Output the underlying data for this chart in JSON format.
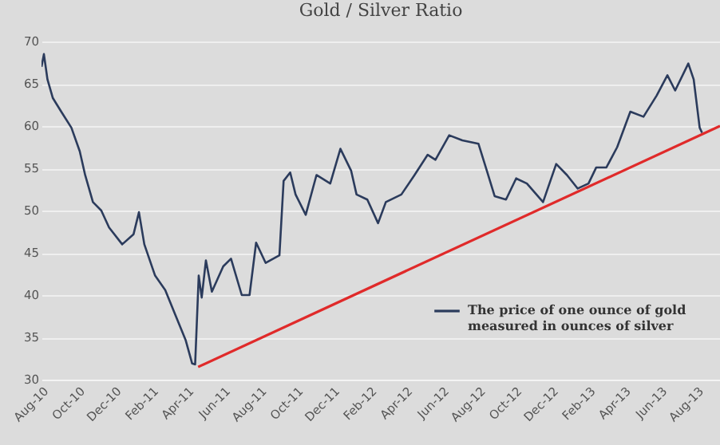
{
  "chart_data": {
    "type": "line",
    "title": "Gold / Silver Ratio",
    "xlim": [
      "2010-08-01",
      "2013-09-09"
    ],
    "xticks": [
      {
        "value": "2010-08-01",
        "label": "Aug-10"
      },
      {
        "value": "2010-10-01",
        "label": "Oct-10"
      },
      {
        "value": "2010-12-01",
        "label": "Dec-10"
      },
      {
        "value": "2011-02-01",
        "label": "Feb-11"
      },
      {
        "value": "2011-04-01",
        "label": "Apr-11"
      },
      {
        "value": "2011-06-01",
        "label": "Jun-11"
      },
      {
        "value": "2011-08-01",
        "label": "Aug-11"
      },
      {
        "value": "2011-10-01",
        "label": "Oct-11"
      },
      {
        "value": "2011-12-01",
        "label": "Dec-11"
      },
      {
        "value": "2012-02-01",
        "label": "Feb-12"
      },
      {
        "value": "2012-04-01",
        "label": "Apr-12"
      },
      {
        "value": "2012-06-01",
        "label": "Jun-12"
      },
      {
        "value": "2012-08-01",
        "label": "Aug-12"
      },
      {
        "value": "2012-10-01",
        "label": "Oct-12"
      },
      {
        "value": "2012-12-01",
        "label": "Dec-12"
      },
      {
        "value": "2013-02-01",
        "label": "Feb-13"
      },
      {
        "value": "2013-04-01",
        "label": "Apr-13"
      },
      {
        "value": "2013-06-01",
        "label": "Jun-13"
      },
      {
        "value": "2013-08-01",
        "label": "Aug-13"
      }
    ],
    "ylim": [
      30,
      70
    ],
    "yticks": [
      30,
      35,
      40,
      45,
      50,
      55,
      60,
      65,
      70
    ],
    "grid": "y",
    "legend": "bottom right",
    "series": [
      {
        "name": "The price of one ounce of gold measured in ounces of silver",
        "color": "#2b3b5c",
        "x": [
          "2010-08-01",
          "2010-08-05",
          "2010-08-11",
          "2010-08-20",
          "2010-09-03",
          "2010-09-20",
          "2010-10-04",
          "2010-10-13",
          "2010-10-26",
          "2010-11-09",
          "2010-11-22",
          "2010-12-14",
          "2011-01-02",
          "2011-01-11",
          "2011-01-20",
          "2011-02-07",
          "2011-02-24",
          "2011-03-12",
          "2011-03-30",
          "2011-04-10",
          "2011-04-15",
          "2011-04-21",
          "2011-04-26",
          "2011-05-03",
          "2011-05-13",
          "2011-06-01",
          "2011-06-14",
          "2011-07-02",
          "2011-07-15",
          "2011-07-26",
          "2011-08-11",
          "2011-09-03",
          "2011-09-10",
          "2011-09-21",
          "2011-09-30",
          "2011-10-17",
          "2011-11-04",
          "2011-11-27",
          "2011-12-14",
          "2012-01-01",
          "2012-01-10",
          "2012-01-28",
          "2012-02-15",
          "2012-02-28",
          "2012-03-25",
          "2012-04-16",
          "2012-05-08",
          "2012-05-21",
          "2012-06-13",
          "2012-07-05",
          "2012-08-01",
          "2012-08-15",
          "2012-08-28",
          "2012-09-16",
          "2012-10-03",
          "2012-10-21",
          "2012-11-17",
          "2012-12-09",
          "2012-12-27",
          "2013-01-14",
          "2013-02-01",
          "2013-02-14",
          "2013-03-03",
          "2013-03-21",
          "2013-04-12",
          "2013-05-04",
          "2013-05-26",
          "2013-06-13",
          "2013-06-26",
          "2013-07-18",
          "2013-07-27",
          "2013-08-06",
          "2013-08-10"
        ],
        "values": [
          67,
          68.5,
          65.5,
          63.3,
          61.7,
          59.8,
          57,
          54.2,
          51,
          50,
          48,
          46,
          47.2,
          49.8,
          46,
          42.3,
          40.6,
          37.8,
          34.7,
          31.9,
          31.8,
          42.3,
          39.7,
          44.1,
          40.4,
          43.4,
          44.3,
          40,
          40,
          46.2,
          43.8,
          44.7,
          53.5,
          54.5,
          51.9,
          49.5,
          54.2,
          53.2,
          57.3,
          54.7,
          51.9,
          51.3,
          48.5,
          51,
          51.9,
          54.2,
          56.6,
          56,
          58.9,
          58.3,
          57.9,
          54.7,
          51.7,
          51.3,
          53.8,
          53.2,
          51,
          55.5,
          54.2,
          52.6,
          53.2,
          55.1,
          55.1,
          57.5,
          61.7,
          61.1,
          63.6,
          66,
          64.2,
          67.4,
          65.5,
          59.8,
          59.2
        ]
      },
      {
        "type": "line",
        "color": "#e02a2a",
        "x": [
          "2011-04-20",
          "2013-09-09"
        ],
        "values": [
          31.5,
          60
        ]
      }
    ]
  }
}
